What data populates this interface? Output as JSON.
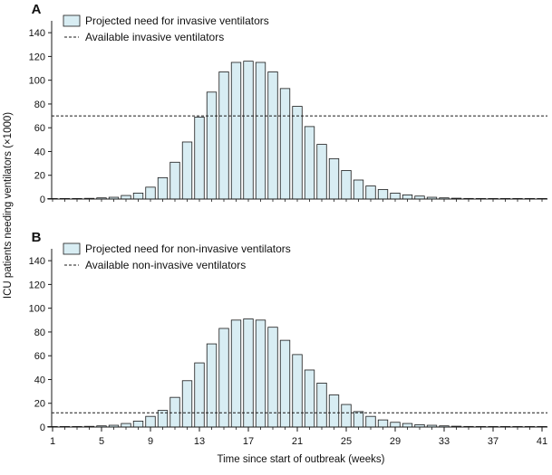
{
  "colors": {
    "bar_fill": "#d8edf3",
    "bar_stroke": "#1a1a1a",
    "axis": "#1a1a1a",
    "threshold_line": "#1a1a1a"
  },
  "shared": {
    "ylabel": "ICU patients needing ventilators (×1000)",
    "xlabel": "Time since start of outbreak (weeks)"
  },
  "chart_data": [
    {
      "type": "bar",
      "panel": "A",
      "x": [
        1,
        2,
        3,
        4,
        5,
        6,
        7,
        8,
        9,
        10,
        11,
        12,
        13,
        14,
        15,
        16,
        17,
        18,
        19,
        20,
        21,
        22,
        23,
        24,
        25,
        26,
        27,
        28,
        29,
        30,
        31,
        32,
        33,
        34,
        35,
        36,
        37,
        38,
        39,
        40,
        41
      ],
      "series": [
        {
          "name": "Projected need for invasive ventilators",
          "values": [
            0.2,
            0.3,
            0.4,
            0.6,
            1,
            1.5,
            3,
            5,
            10,
            18,
            31,
            48,
            69,
            90,
            107,
            115,
            116,
            115,
            107,
            93,
            78,
            61,
            46,
            34,
            24,
            16,
            11,
            8,
            5,
            3.5,
            2.5,
            1.5,
            1,
            0.7,
            0.5,
            0.3,
            0.2,
            0.2,
            0.1,
            0.1,
            0.1
          ]
        }
      ],
      "threshold": {
        "name": "Available invasive ventilators",
        "value": 70,
        "style": "dashed"
      },
      "ylim": [
        0,
        150
      ],
      "yticks": [
        0,
        20,
        40,
        60,
        80,
        100,
        120,
        140
      ],
      "xlim": [
        1,
        41
      ],
      "legend_placement": "top-left",
      "grid": false
    },
    {
      "type": "bar",
      "panel": "B",
      "x": [
        1,
        2,
        3,
        4,
        5,
        6,
        7,
        8,
        9,
        10,
        11,
        12,
        13,
        14,
        15,
        16,
        17,
        18,
        19,
        20,
        21,
        22,
        23,
        24,
        25,
        26,
        27,
        28,
        29,
        30,
        31,
        32,
        33,
        34,
        35,
        36,
        37,
        38,
        39,
        40,
        41
      ],
      "series": [
        {
          "name": "Projected need for non-invasive ventilators",
          "values": [
            0.2,
            0.3,
            0.4,
            0.6,
            1,
            1.5,
            3,
            5,
            9,
            14,
            25,
            39,
            54,
            70,
            83,
            90,
            91,
            90,
            84,
            73,
            61,
            48,
            37,
            27,
            19,
            13,
            9,
            6,
            4,
            3,
            2,
            1.5,
            1,
            0.7,
            0.5,
            0.3,
            0.2,
            0.2,
            0.1,
            0.1,
            0.1
          ]
        }
      ],
      "threshold": {
        "name": "Available non-invasive ventilators",
        "value": 12,
        "style": "dashed"
      },
      "ylim": [
        0,
        150
      ],
      "yticks": [
        0,
        20,
        40,
        60,
        80,
        100,
        120,
        140
      ],
      "xticks": [
        1,
        5,
        9,
        13,
        17,
        21,
        25,
        29,
        33,
        37,
        41
      ],
      "xlim": [
        1,
        41
      ],
      "legend_placement": "top-left",
      "grid": false
    }
  ]
}
